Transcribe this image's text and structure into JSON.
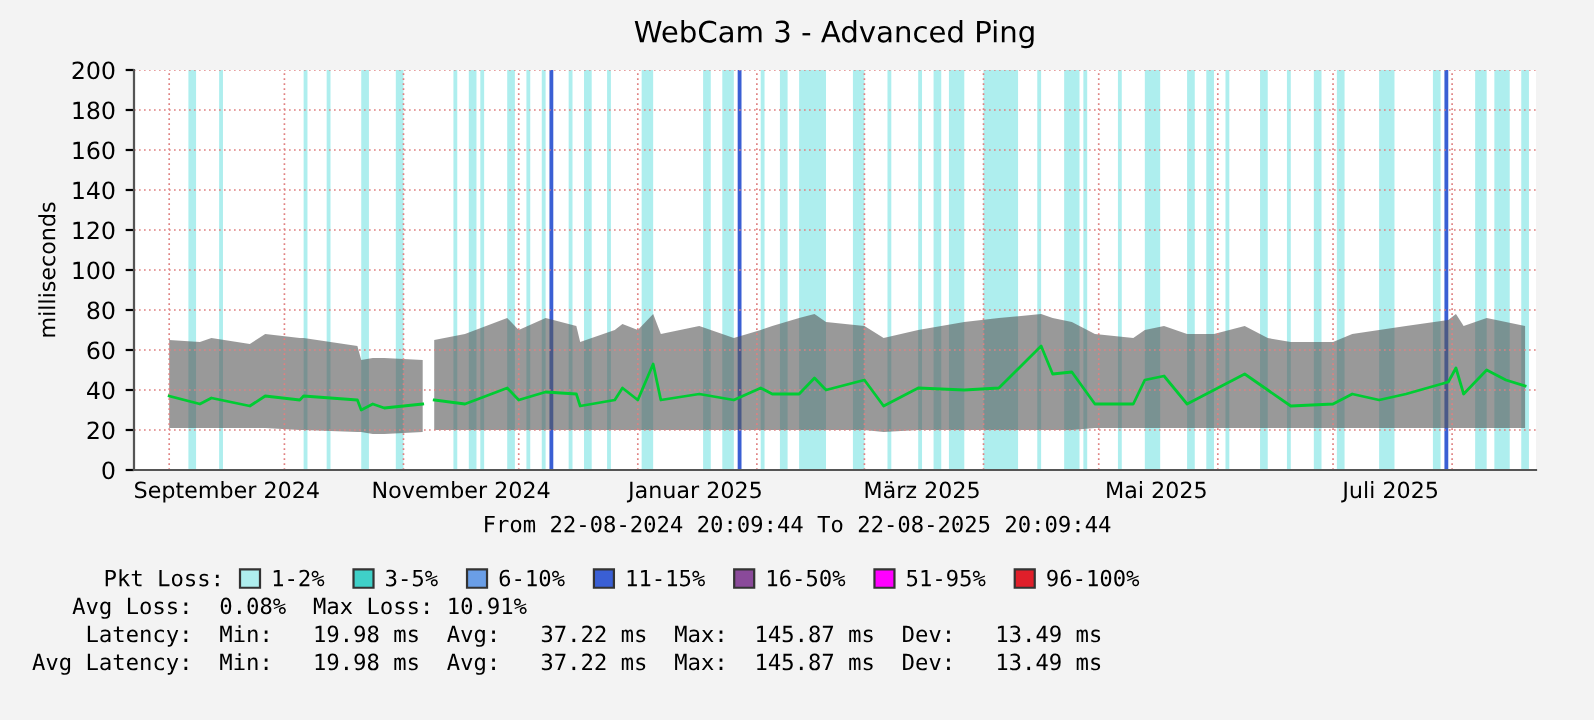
{
  "chart_data": {
    "type": "line",
    "title": "WebCam 3 - Advanced Ping",
    "ylabel": "milliseconds",
    "x": [
      "2024-09-01",
      "2024-09-09",
      "2024-09-12",
      "2024-09-22",
      "2024-09-26",
      "2024-10-05",
      "2024-10-06",
      "2024-10-20",
      "2024-10-21",
      "2024-10-24",
      "2024-10-27",
      "2024-11-06",
      "2024-11-08",
      "2024-11-09",
      "2024-11-17",
      "2024-11-28",
      "2024-12-01",
      "2024-12-08",
      "2024-12-16",
      "2024-12-17",
      "2024-12-26",
      "2024-12-28",
      "2025-01-01",
      "2025-01-05",
      "2025-01-07",
      "2025-01-17",
      "2025-01-26",
      "2025-02-02",
      "2025-02-05",
      "2025-02-12",
      "2025-02-16",
      "2025-02-19",
      "2025-03-01",
      "2025-03-06",
      "2025-03-15",
      "2025-03-27",
      "2025-04-05",
      "2025-04-16",
      "2025-04-19",
      "2025-04-24",
      "2025-04-30",
      "2025-05-10",
      "2025-05-13",
      "2025-05-18",
      "2025-05-24",
      "2025-05-31",
      "2025-06-08",
      "2025-06-14",
      "2025-06-20",
      "2025-07-01",
      "2025-07-06",
      "2025-07-13",
      "2025-07-20",
      "2025-07-31",
      "2025-08-02",
      "2025-08-04",
      "2025-08-10",
      "2025-08-15",
      "2025-08-20"
    ],
    "series": [
      {
        "color": "#00cc33",
        "values": [
          37,
          33,
          36,
          32,
          37,
          35,
          37,
          35,
          30,
          33,
          31,
          33,
          null,
          35,
          33,
          41,
          35,
          39,
          38,
          32,
          35,
          41,
          35,
          53,
          35,
          38,
          35,
          41,
          38,
          38,
          46,
          40,
          45,
          32,
          41,
          40,
          41,
          62,
          48,
          49,
          33,
          33,
          45,
          47,
          33,
          40,
          48,
          40,
          32,
          33,
          38,
          35,
          38,
          44,
          51,
          38,
          50,
          45,
          42
        ],
        "lower": [
          21,
          21,
          21,
          21,
          21,
          20,
          20,
          19,
          19,
          18,
          18,
          19,
          null,
          20,
          20,
          20,
          20,
          20,
          20,
          20,
          20,
          20,
          20,
          20,
          20,
          20,
          20,
          20,
          20,
          20,
          20,
          20,
          20,
          19,
          20,
          20,
          20,
          20,
          20,
          20,
          21,
          21,
          21,
          21,
          21,
          21,
          21,
          21,
          21,
          21,
          21,
          21,
          21,
          21,
          21,
          21,
          21,
          21,
          21
        ],
        "upper": [
          65,
          64,
          66,
          63,
          68,
          66,
          66,
          62,
          55,
          56,
          56,
          55,
          null,
          65,
          68,
          76,
          70,
          76,
          72,
          64,
          70,
          73,
          70,
          78,
          68,
          72,
          66,
          70,
          72,
          76,
          78,
          74,
          72,
          66,
          70,
          74,
          76,
          78,
          76,
          74,
          68,
          66,
          70,
          72,
          68,
          68,
          72,
          66,
          64,
          64,
          68,
          70,
          72,
          75,
          78,
          72,
          76,
          74,
          72
        ]
      },
      {
        "name": "1-2%",
        "color": "#aeeeee",
        "values": [
          null,
          null,
          null,
          null,
          null,
          null,
          null,
          null,
          null,
          null,
          null,
          null,
          null,
          null,
          null,
          null,
          null,
          null,
          null,
          null,
          null,
          null,
          null,
          null,
          null,
          null,
          null,
          null,
          null,
          null,
          null,
          null,
          null,
          null,
          null,
          null,
          null,
          null,
          null,
          null,
          null,
          null,
          null,
          null,
          null,
          null,
          null,
          null,
          null,
          null,
          null,
          null,
          null,
          null,
          null,
          null,
          null,
          null,
          null
        ]
      },
      {
        "name": "3-5%",
        "color": "#3fd0c8",
        "values": [
          null,
          null,
          null,
          null,
          null,
          null,
          null,
          null,
          null,
          null,
          null,
          null,
          null,
          null,
          null,
          null,
          null,
          null,
          null,
          null,
          null,
          null,
          null,
          null,
          null,
          null,
          null,
          null,
          null,
          null,
          null,
          null,
          null,
          null,
          null,
          null,
          null,
          null,
          null,
          null,
          null,
          null,
          null,
          null,
          null,
          null,
          null,
          null,
          null,
          null,
          null,
          null,
          null,
          null,
          null,
          null,
          null,
          null,
          null
        ]
      },
      {
        "name": "6-10%",
        "color": "#6a9ee6",
        "values": [
          null,
          null,
          null,
          null,
          null,
          null,
          null,
          null,
          null,
          null,
          null,
          null,
          null,
          null,
          null,
          null,
          null,
          null,
          null,
          null,
          null,
          null,
          null,
          null,
          null,
          null,
          null,
          null,
          null,
          null,
          null,
          null,
          null,
          null,
          null,
          null,
          null,
          null,
          null,
          null,
          null,
          null,
          null,
          null,
          null,
          null,
          null,
          null,
          null,
          null,
          null,
          null,
          null,
          null,
          null,
          null,
          null,
          null,
          null
        ]
      },
      {
        "name": "11-15%",
        "color": "#3a5fd4",
        "values": [
          null,
          null,
          null,
          null,
          null,
          null,
          null,
          null,
          null,
          null,
          null,
          null,
          null,
          null,
          null,
          null,
          null,
          null,
          null,
          null,
          null,
          null,
          null,
          null,
          null,
          null,
          null,
          null,
          null,
          null,
          null,
          null,
          null,
          null,
          null,
          null,
          null,
          null,
          null,
          null,
          null,
          null,
          null,
          null,
          null,
          null,
          null,
          null,
          null,
          null,
          null,
          null,
          null,
          null,
          null,
          null,
          null,
          null,
          null
        ]
      },
      {
        "name": "16-50%",
        "color": "#8a4a9a",
        "values": [
          null,
          null,
          null,
          null,
          null,
          null,
          null,
          null,
          null,
          null,
          null,
          null,
          null,
          null,
          null,
          null,
          null,
          null,
          null,
          null,
          null,
          null,
          null,
          null,
          null,
          null,
          null,
          null,
          null,
          null,
          null,
          null,
          null,
          null,
          null,
          null,
          null,
          null,
          null,
          null,
          null,
          null,
          null,
          null,
          null,
          null,
          null,
          null,
          null,
          null,
          null,
          null,
          null,
          null,
          null,
          null,
          null,
          null,
          null
        ]
      },
      {
        "name": "51-95%",
        "color": "#ff00ff",
        "values": [
          null,
          null,
          null,
          null,
          null,
          null,
          null,
          null,
          null,
          null,
          null,
          null,
          null,
          null,
          null,
          null,
          null,
          null,
          null,
          null,
          null,
          null,
          null,
          null,
          null,
          null,
          null,
          null,
          null,
          null,
          null,
          null,
          null,
          null,
          null,
          null,
          null,
          null,
          null,
          null,
          null,
          null,
          null,
          null,
          null,
          null,
          null,
          null,
          null,
          null,
          null,
          null,
          null,
          null,
          null,
          null,
          null,
          null,
          null
        ]
      },
      {
        "name": "96-100%",
        "color": "#e01f2a",
        "values": [
          null,
          null,
          null,
          null,
          null,
          null,
          null,
          null,
          null,
          null,
          null,
          null,
          null,
          null,
          null,
          null,
          null,
          null,
          null,
          null,
          null,
          null,
          null,
          null,
          null,
          null,
          null,
          null,
          null,
          null,
          null,
          null,
          null,
          null,
          null,
          null,
          null,
          null,
          null,
          null,
          null,
          null,
          null,
          null,
          null,
          null,
          null,
          null,
          null,
          null,
          null,
          null,
          null,
          null,
          null,
          null,
          null,
          null,
          null
        ]
      }
    ],
    "bands": [
      {
        "axis": "x",
        "from": "2024-09-06",
        "to": "2024-09-08",
        "color": "#aeeeee"
      },
      {
        "axis": "x",
        "from": "2024-09-14",
        "to": "2024-09-15",
        "color": "#aeeeee"
      },
      {
        "axis": "x",
        "from": "2024-10-06",
        "to": "2024-10-07",
        "color": "#aeeeee"
      },
      {
        "axis": "x",
        "from": "2024-10-12",
        "to": "2024-10-13",
        "color": "#aeeeee"
      },
      {
        "axis": "x",
        "from": "2024-10-21",
        "to": "2024-10-23",
        "color": "#aeeeee"
      },
      {
        "axis": "x",
        "from": "2024-10-30",
        "to": "2024-11-01",
        "color": "#aeeeee"
      },
      {
        "axis": "x",
        "from": "2024-11-14",
        "to": "2024-11-15",
        "color": "#aeeeee"
      },
      {
        "axis": "x",
        "from": "2024-11-18",
        "to": "2024-11-20",
        "color": "#aeeeee"
      },
      {
        "axis": "x",
        "from": "2024-11-21",
        "to": "2024-11-22",
        "color": "#aeeeee"
      },
      {
        "axis": "x",
        "from": "2024-11-28",
        "to": "2024-11-30",
        "color": "#aeeeee"
      },
      {
        "axis": "x",
        "from": "2024-12-03",
        "to": "2024-12-04",
        "color": "#aeeeee"
      },
      {
        "axis": "x",
        "from": "2024-12-07",
        "to": "2024-12-08",
        "color": "#aeeeee"
      },
      {
        "axis": "x",
        "from": "2024-12-09",
        "to": "2024-12-10",
        "color": "#3a5fd4"
      },
      {
        "axis": "x",
        "from": "2024-12-14",
        "to": "2024-12-15",
        "color": "#aeeeee"
      },
      {
        "axis": "x",
        "from": "2024-12-18",
        "to": "2024-12-20",
        "color": "#aeeeee"
      },
      {
        "axis": "x",
        "from": "2024-12-24",
        "to": "2024-12-25",
        "color": "#aeeeee"
      },
      {
        "axis": "x",
        "from": "2025-01-02",
        "to": "2025-01-05",
        "color": "#aeeeee"
      },
      {
        "axis": "x",
        "from": "2025-01-18",
        "to": "2025-01-20",
        "color": "#aeeeee"
      },
      {
        "axis": "x",
        "from": "2025-01-23",
        "to": "2025-01-26",
        "color": "#aeeeee"
      },
      {
        "axis": "x",
        "from": "2025-01-27",
        "to": "2025-01-28",
        "color": "#3a5fd4"
      },
      {
        "axis": "x",
        "from": "2025-02-02",
        "to": "2025-02-03",
        "color": "#aeeeee"
      },
      {
        "axis": "x",
        "from": "2025-02-07",
        "to": "2025-02-09",
        "color": "#aeeeee"
      },
      {
        "axis": "x",
        "from": "2025-02-12",
        "to": "2025-02-19",
        "color": "#aeeeee"
      },
      {
        "axis": "x",
        "from": "2025-02-26",
        "to": "2025-03-01",
        "color": "#aeeeee"
      },
      {
        "axis": "x",
        "from": "2025-03-07",
        "to": "2025-03-08",
        "color": "#aeeeee"
      },
      {
        "axis": "x",
        "from": "2025-03-15",
        "to": "2025-03-16",
        "color": "#aeeeee"
      },
      {
        "axis": "x",
        "from": "2025-03-19",
        "to": "2025-03-21",
        "color": "#aeeeee"
      },
      {
        "axis": "x",
        "from": "2025-03-23",
        "to": "2025-03-27",
        "color": "#aeeeee"
      },
      {
        "axis": "x",
        "from": "2025-04-01",
        "to": "2025-04-10",
        "color": "#aeeeee"
      },
      {
        "axis": "x",
        "from": "2025-04-15",
        "to": "2025-04-16",
        "color": "#aeeeee"
      },
      {
        "axis": "x",
        "from": "2025-04-22",
        "to": "2025-04-26",
        "color": "#aeeeee"
      },
      {
        "axis": "x",
        "from": "2025-04-27",
        "to": "2025-04-28",
        "color": "#aeeeee"
      },
      {
        "axis": "x",
        "from": "2025-05-06",
        "to": "2025-05-07",
        "color": "#aeeeee"
      },
      {
        "axis": "x",
        "from": "2025-05-13",
        "to": "2025-05-17",
        "color": "#aeeeee"
      },
      {
        "axis": "x",
        "from": "2025-05-24",
        "to": "2025-05-26",
        "color": "#aeeeee"
      },
      {
        "axis": "x",
        "from": "2025-05-29",
        "to": "2025-05-31",
        "color": "#aeeeee"
      },
      {
        "axis": "x",
        "from": "2025-06-03",
        "to": "2025-06-04",
        "color": "#aeeeee"
      },
      {
        "axis": "x",
        "from": "2025-06-12",
        "to": "2025-06-14",
        "color": "#aeeeee"
      },
      {
        "axis": "x",
        "from": "2025-06-19",
        "to": "2025-06-20",
        "color": "#aeeeee"
      },
      {
        "axis": "x",
        "from": "2025-06-26",
        "to": "2025-06-28",
        "color": "#aeeeee"
      },
      {
        "axis": "x",
        "from": "2025-07-02",
        "to": "2025-07-04",
        "color": "#aeeeee"
      },
      {
        "axis": "x",
        "from": "2025-07-13",
        "to": "2025-07-17",
        "color": "#aeeeee"
      },
      {
        "axis": "x",
        "from": "2025-07-27",
        "to": "2025-07-29",
        "color": "#aeeeee"
      },
      {
        "axis": "x",
        "from": "2025-07-30",
        "to": "2025-07-31",
        "color": "#3a5fd4"
      },
      {
        "axis": "x",
        "from": "2025-08-07",
        "to": "2025-08-10",
        "color": "#aeeeee"
      },
      {
        "axis": "x",
        "from": "2025-08-12",
        "to": "2025-08-16",
        "color": "#aeeeee"
      },
      {
        "axis": "x",
        "from": "2025-08-19",
        "to": "2025-08-21",
        "color": "#aeeeee"
      }
    ],
    "xlim": [
      "2024-08-22T20:09",
      "2025-08-22T20:09"
    ],
    "xticks": [
      {
        "value": "2024-09-01",
        "label": null
      },
      {
        "value": "2024-09-16",
        "label": "September 2024"
      },
      {
        "value": "2024-10-01",
        "label": null
      },
      {
        "value": "2024-11-01",
        "label": null
      },
      {
        "value": "2024-11-16",
        "label": "November 2024"
      },
      {
        "value": "2024-12-01",
        "label": null
      },
      {
        "value": "2025-01-01",
        "label": null
      },
      {
        "value": "2025-01-16",
        "label": "Januar 2025"
      },
      {
        "value": "2025-02-01",
        "label": null
      },
      {
        "value": "2025-03-01",
        "label": null
      },
      {
        "value": "2025-03-16",
        "label": "März 2025"
      },
      {
        "value": "2025-04-01",
        "label": null
      },
      {
        "value": "2025-05-01",
        "label": null
      },
      {
        "value": "2025-05-16",
        "label": "Mai 2025"
      },
      {
        "value": "2025-06-01",
        "label": null
      },
      {
        "value": "2025-07-01",
        "label": null
      },
      {
        "value": "2025-07-16",
        "label": "Juli 2025"
      },
      {
        "value": "2025-08-01",
        "label": null
      }
    ],
    "ylim": [
      0,
      200
    ],
    "yticks": [
      0,
      20,
      40,
      60,
      80,
      100,
      120,
      140,
      160,
      180,
      200
    ],
    "grid": true,
    "legend": "bottom",
    "legend_title": "Pkt Loss:",
    "annotations": [
      "From 22-08-2024 20:09:44 To 22-08-2025 20:09:44",
      "   Avg Loss:  0.08%  Max Loss: 10.91%",
      "    Latency:  Min:   19.98 ms  Avg:   37.22 ms  Max:  145.87 ms  Dev:   13.49 ms",
      "Avg Latency:  Min:   19.98 ms  Avg:   37.22 ms  Max:  145.87 ms  Dev:   13.49 ms"
    ]
  }
}
